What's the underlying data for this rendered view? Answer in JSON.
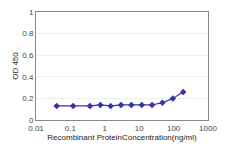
{
  "chart_data": {
    "type": "line",
    "xlabel": "Recombinant ProteinConcentration(ng/ml)",
    "ylabel": "OD 450",
    "x": [
      0.04,
      0.12,
      0.37,
      0.74,
      1.48,
      2.96,
      5.93,
      11.85,
      23.7,
      47.4,
      94.8,
      189.6
    ],
    "values": [
      0.13,
      0.13,
      0.13,
      0.14,
      0.13,
      0.14,
      0.14,
      0.14,
      0.14,
      0.16,
      0.2,
      0.26
    ],
    "color": "#3333aa",
    "marker": "diamond",
    "log": "x",
    "xlim": [
      0.01,
      1000
    ],
    "xticks": [
      0.01,
      0.1,
      1,
      10,
      100,
      1000
    ],
    "ylim": [
      0,
      1
    ],
    "yticks": [
      0,
      0.2,
      0.4,
      0.6,
      0.8,
      1
    ],
    "grid": "y"
  }
}
